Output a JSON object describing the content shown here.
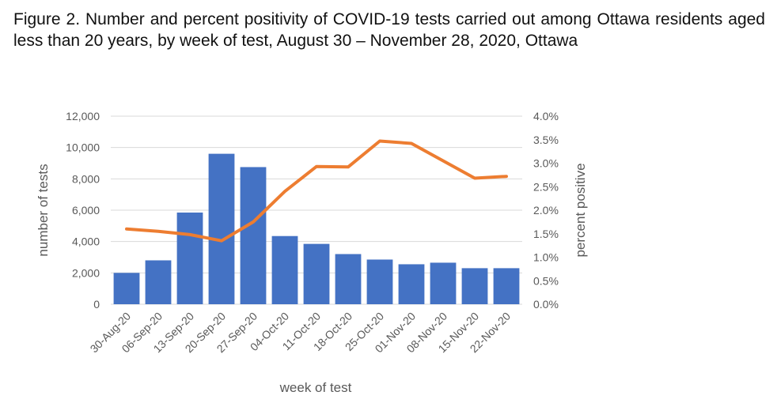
{
  "caption": "Figure 2. Number and percent positivity of COVID-19 tests carried out among Ottawa residents aged less than 20 years, by week of test, August 30 – November 28, 2020, Ottawa",
  "colors": {
    "bar": "#4472c4",
    "line": "#ed7d31",
    "grid": "#d9d9d9",
    "text": "#595959"
  },
  "chart_data": {
    "type": "bar",
    "title": "Figure 2. Number and percent positivity of COVID-19 tests carried out among Ottawa residents aged less than 20 years, by week of test, August 30 – November 28, 2020, Ottawa",
    "xlabel": "week of test",
    "ylabel": "number of tests",
    "y2label": "percent positive",
    "ylim": [
      0,
      12000
    ],
    "y2lim": [
      0,
      4.0
    ],
    "yticks": [
      "0",
      "2,000",
      "4,000",
      "6,000",
      "8,000",
      "10,000",
      "12,000"
    ],
    "y2ticks": [
      "0.0%",
      "0.5%",
      "1.0%",
      "1.5%",
      "2.0%",
      "2.5%",
      "3.0%",
      "3.5%",
      "4.0%"
    ],
    "grid": true,
    "legend": "none",
    "categories": [
      "30-Aug-20",
      "06-Sep-20",
      "13-Sep-20",
      "20-Sep-20",
      "27-Sep-20",
      "04-Oct-20",
      "11-Oct-20",
      "18-Oct-20",
      "25-Oct-20",
      "01-Nov-20",
      "08-Nov-20",
      "15-Nov-20",
      "22-Nov-20"
    ],
    "series": [
      {
        "type": "bar",
        "axis": "left",
        "values": [
          2000,
          2800,
          5850,
          9600,
          8750,
          4350,
          3850,
          3200,
          2850,
          2550,
          2650,
          2300,
          2300
        ]
      },
      {
        "type": "line",
        "axis": "right",
        "values": [
          1.6,
          1.55,
          1.48,
          1.35,
          1.75,
          2.4,
          2.93,
          2.92,
          3.47,
          3.42,
          3.05,
          2.68,
          2.72
        ]
      }
    ]
  }
}
